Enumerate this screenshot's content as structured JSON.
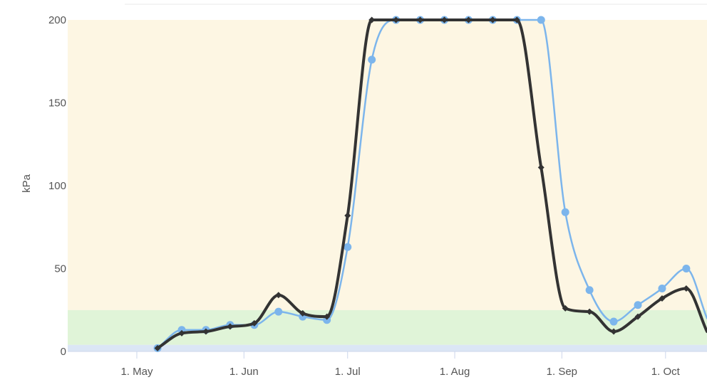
{
  "chart_data": {
    "type": "line",
    "title": "",
    "xlabel": "",
    "ylabel": "kPa",
    "ylim": [
      0,
      200
    ],
    "y_ticks": [
      {
        "value": 0,
        "label": "0"
      },
      {
        "value": 50,
        "label": "50"
      },
      {
        "value": 100,
        "label": "100"
      },
      {
        "value": 150,
        "label": "150"
      },
      {
        "value": 200,
        "label": "200"
      }
    ],
    "x_ticks": [
      {
        "date": "2023-05-01",
        "label": "1. May"
      },
      {
        "date": "2023-06-01",
        "label": "1. Jun"
      },
      {
        "date": "2023-07-01",
        "label": "1. Jul"
      },
      {
        "date": "2023-08-01",
        "label": "1. Aug"
      },
      {
        "date": "2023-09-01",
        "label": "1. Sep"
      },
      {
        "date": "2023-10-01",
        "label": "1. Oct"
      }
    ],
    "x_range": [
      "2023-04-11",
      "2023-10-13"
    ],
    "bands": [
      {
        "from": 0,
        "to": 4,
        "color": "#dbe6f5"
      },
      {
        "from": 4,
        "to": 25,
        "color": "#e0f4d8"
      },
      {
        "from": 25,
        "to": 200,
        "color": "#fdf6e3"
      }
    ],
    "grid": false,
    "legend": "none",
    "series": [
      {
        "color": "#7cb5ec",
        "marker": "circle",
        "points": [
          {
            "x": "2023-05-07",
            "y": 2
          },
          {
            "x": "2023-05-14",
            "y": 13
          },
          {
            "x": "2023-05-21",
            "y": 13
          },
          {
            "x": "2023-05-28",
            "y": 16
          },
          {
            "x": "2023-06-04",
            "y": 16
          },
          {
            "x": "2023-06-11",
            "y": 24
          },
          {
            "x": "2023-06-18",
            "y": 21
          },
          {
            "x": "2023-06-25",
            "y": 19
          },
          {
            "x": "2023-07-01",
            "y": 63
          },
          {
            "x": "2023-07-08",
            "y": 176
          },
          {
            "x": "2023-07-15",
            "y": 200
          },
          {
            "x": "2023-07-22",
            "y": 200
          },
          {
            "x": "2023-07-29",
            "y": 200
          },
          {
            "x": "2023-08-05",
            "y": 200
          },
          {
            "x": "2023-08-12",
            "y": 200
          },
          {
            "x": "2023-08-19",
            "y": 200
          },
          {
            "x": "2023-08-26",
            "y": 200
          },
          {
            "x": "2023-09-02",
            "y": 84
          },
          {
            "x": "2023-09-09",
            "y": 37
          },
          {
            "x": "2023-09-16",
            "y": 18
          },
          {
            "x": "2023-09-23",
            "y": 28
          },
          {
            "x": "2023-09-30",
            "y": 38
          },
          {
            "x": "2023-10-07",
            "y": 50
          },
          {
            "x": "2023-10-13",
            "y": 20
          }
        ]
      },
      {
        "color": "#333333",
        "marker": "diamond",
        "points": [
          {
            "x": "2023-05-07",
            "y": 2
          },
          {
            "x": "2023-05-14",
            "y": 11
          },
          {
            "x": "2023-05-21",
            "y": 12
          },
          {
            "x": "2023-05-28",
            "y": 15
          },
          {
            "x": "2023-06-04",
            "y": 17
          },
          {
            "x": "2023-06-11",
            "y": 34
          },
          {
            "x": "2023-06-18",
            "y": 23
          },
          {
            "x": "2023-06-25",
            "y": 21
          },
          {
            "x": "2023-07-01",
            "y": 82
          },
          {
            "x": "2023-07-08",
            "y": 200
          },
          {
            "x": "2023-07-15",
            "y": 200
          },
          {
            "x": "2023-07-22",
            "y": 200
          },
          {
            "x": "2023-07-29",
            "y": 200
          },
          {
            "x": "2023-08-05",
            "y": 200
          },
          {
            "x": "2023-08-12",
            "y": 200
          },
          {
            "x": "2023-08-19",
            "y": 200
          },
          {
            "x": "2023-08-26",
            "y": 111
          },
          {
            "x": "2023-09-02",
            "y": 26
          },
          {
            "x": "2023-09-09",
            "y": 24
          },
          {
            "x": "2023-09-16",
            "y": 12
          },
          {
            "x": "2023-09-23",
            "y": 21
          },
          {
            "x": "2023-09-30",
            "y": 32
          },
          {
            "x": "2023-10-07",
            "y": 38
          },
          {
            "x": "2023-10-13",
            "y": 12
          }
        ]
      }
    ]
  }
}
